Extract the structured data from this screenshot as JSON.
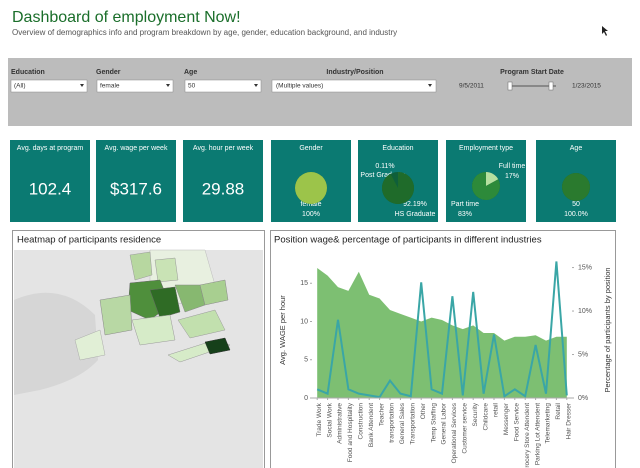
{
  "header": {
    "title": "Dashboard of employment Now!",
    "subtitle": "Overview of demographics info and program breakdown by age, gender, education background, and industry"
  },
  "filters": [
    {
      "label": "Education",
      "value": "(All)"
    },
    {
      "label": "Gender",
      "value": "female"
    },
    {
      "label": "Age",
      "value": "50"
    },
    {
      "label": "Industry/Position",
      "value": "(Multiple values)"
    }
  ],
  "date_filter": {
    "label": "Program Start Date",
    "start": "9/5/2011",
    "end": "1/23/2015"
  },
  "kpis": [
    {
      "label": "Avg. days at program",
      "value": "102.4"
    },
    {
      "label": "Avg. wage per week",
      "value": "$317.6"
    },
    {
      "label": "Avg. hour per week",
      "value": "29.88"
    }
  ],
  "pies": [
    {
      "title": "Gender",
      "slices": [
        {
          "name": "female",
          "value": 100,
          "label": "100%",
          "color": "#9cc44a"
        }
      ]
    },
    {
      "title": "Education",
      "slices": [
        {
          "name": "Post Graduate",
          "value": 0.11,
          "label": "0.11%",
          "color": "#b6d98a"
        },
        {
          "name": "HS Graduate",
          "value": 92.19,
          "label": "92.19%",
          "color": "#1f6b2a"
        }
      ]
    },
    {
      "title": "Employment type",
      "slices": [
        {
          "name": "Full time",
          "value": 17,
          "label": "17%",
          "color": "#b6e0a0"
        },
        {
          "name": "Part time",
          "value": 83,
          "label": "83%",
          "color": "#2d8a3a"
        }
      ]
    },
    {
      "title": "Age",
      "slices": [
        {
          "name": "50",
          "value": 100,
          "label": "100.0%",
          "color": "#2a7a2e"
        }
      ]
    }
  ],
  "map": {
    "title": "Heatmap of participants residence"
  },
  "chart_data": {
    "type": "area-line",
    "title": "Position wage& percentage of participants in different industries",
    "ylabel": "Avg. WAGE per hour",
    "y2label": "Percentage of participants by position",
    "categories": [
      "Trade Work",
      "Social Work",
      "Administrative",
      "Food and Hospitality",
      "Construction",
      "Bank Attendent",
      "Teacher",
      "transportation",
      "General Sales",
      "Transportation",
      "Other",
      "Temp Staffing",
      "General Labor",
      "Operational Services",
      "Customer service",
      "Security",
      "Childcare",
      "retail",
      "Messenger",
      "Food Service",
      "Grocery Store Attendent",
      "Parking Lot Attendent",
      "Telemarketing",
      "Retail",
      "Hair Dresser"
    ],
    "series": [
      {
        "name": "Avg. WAGE per hour",
        "kind": "area",
        "color": "#7dbf72",
        "values": [
          17,
          16,
          14.5,
          14,
          16.5,
          13.5,
          13,
          11.5,
          11,
          10.5,
          10,
          10.5,
          10.2,
          9.5,
          9,
          9.5,
          8.5,
          8.5,
          7.5,
          8,
          8,
          8.2,
          7.5,
          8,
          8
        ]
      },
      {
        "name": "Percentage of participants by position",
        "kind": "line",
        "axis": "y2",
        "color": "#3aa6a6",
        "values": [
          1,
          0.5,
          9,
          1,
          0.5,
          0.3,
          0.1,
          2,
          0.5,
          0.2,
          13.3,
          1,
          0.5,
          11.7,
          0.3,
          12.2,
          0.5,
          7.3,
          0.2,
          1,
          0.2,
          6.1,
          0.5,
          15.7,
          0.3
        ]
      }
    ],
    "ylim": [
      0,
      18.3
    ],
    "yticks": [
      0,
      5,
      10,
      15
    ],
    "y2lim": [
      0,
      16.1
    ],
    "y2ticks": [
      {
        "value": 0,
        "label": "0%"
      },
      {
        "value": 5,
        "label": "5%"
      },
      {
        "value": 10,
        "label": "10%"
      },
      {
        "value": 15,
        "label": "15%"
      }
    ]
  }
}
